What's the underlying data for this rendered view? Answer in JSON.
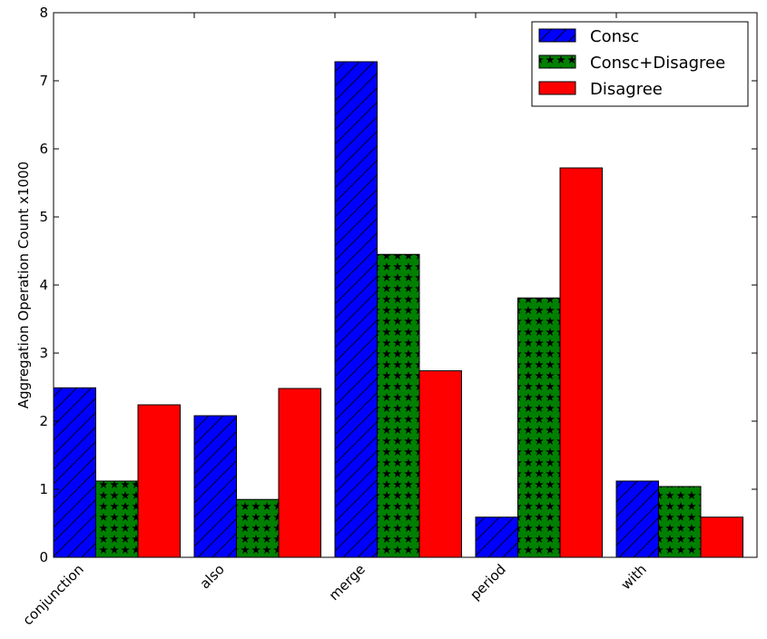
{
  "chart_data": {
    "type": "bar",
    "ylabel": "Aggregation Operation Count x1000",
    "xlabel": "",
    "ylim": [
      0,
      8
    ],
    "yticks": [
      "0",
      "1",
      "2",
      "3",
      "4",
      "5",
      "6",
      "7",
      "8"
    ],
    "categories": [
      "conjunction",
      "also",
      "merge",
      "period",
      "with"
    ],
    "legend_position": "top-right",
    "grid": false,
    "series": [
      {
        "name": "Consc",
        "values": [
          2.49,
          2.08,
          7.28,
          0.59,
          1.12
        ],
        "color": "#0000ff",
        "hatch": "diagonal"
      },
      {
        "name": "Consc+Disagree",
        "values": [
          1.12,
          0.85,
          4.45,
          3.81,
          1.04
        ],
        "color": "#008000",
        "hatch": "stars"
      },
      {
        "name": "Disagree",
        "values": [
          2.24,
          2.48,
          2.74,
          5.72,
          0.59
        ],
        "color": "#ff0000",
        "hatch": "none"
      }
    ]
  }
}
